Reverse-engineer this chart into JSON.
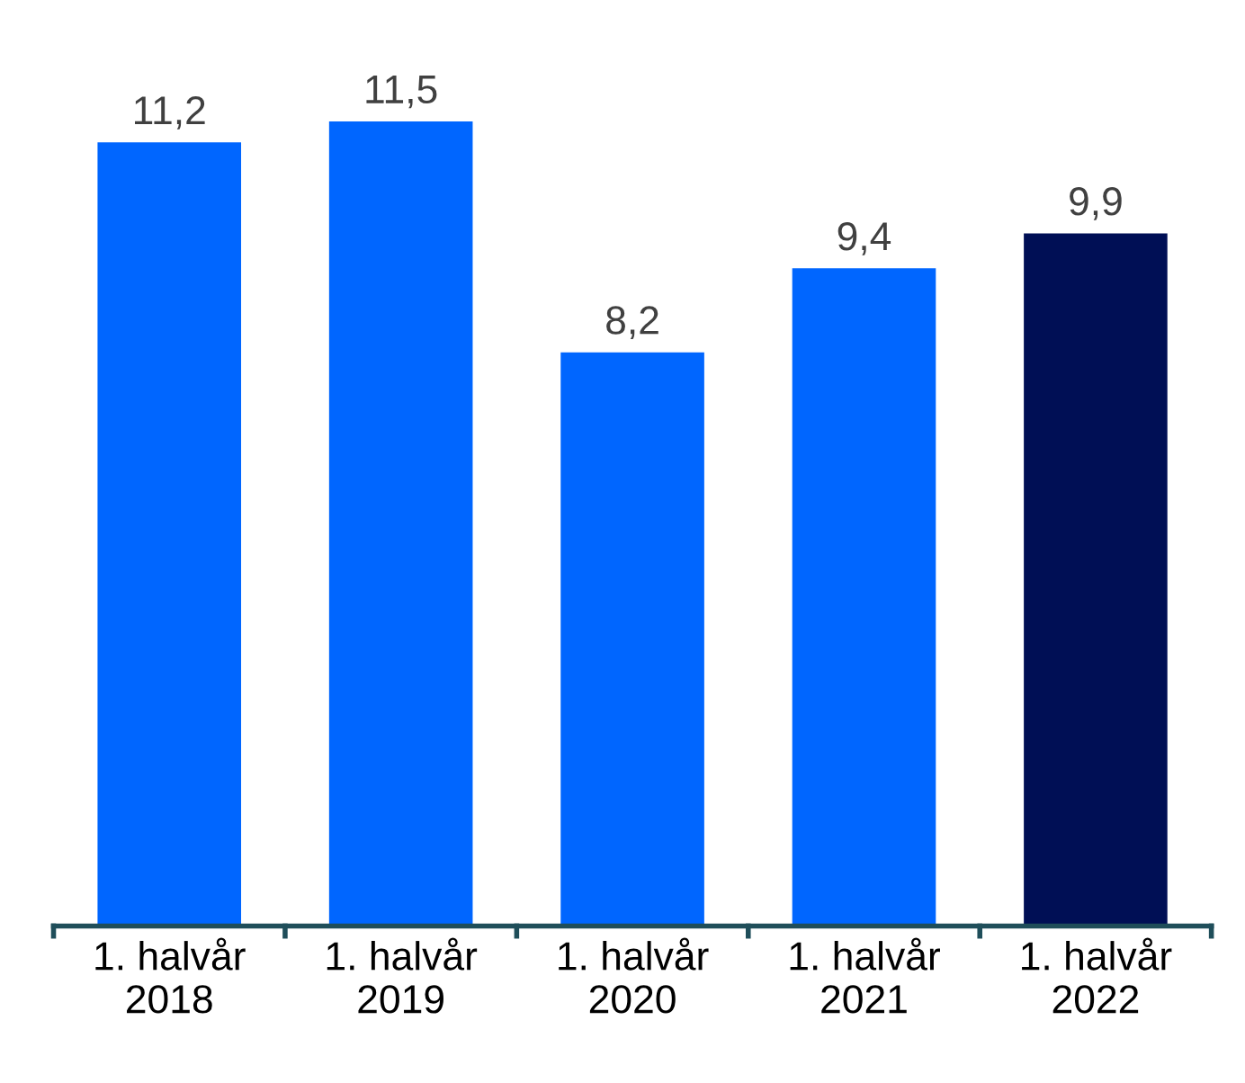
{
  "chart_data": {
    "type": "bar",
    "categories": [
      "1. halvår\n2018",
      "1. halvår\n2019",
      "1. halvår\n2020",
      "1. halvår\n2021",
      "1. halvår\n2022"
    ],
    "values": [
      11.2,
      11.5,
      8.2,
      9.4,
      9.9
    ],
    "value_labels": [
      "11,2",
      "11,5",
      "8,2",
      "9,4",
      "9,9"
    ],
    "colors": [
      "#0066ff",
      "#0066ff",
      "#0066ff",
      "#0066ff",
      "#000f55"
    ],
    "grid": false,
    "legend": false
  }
}
